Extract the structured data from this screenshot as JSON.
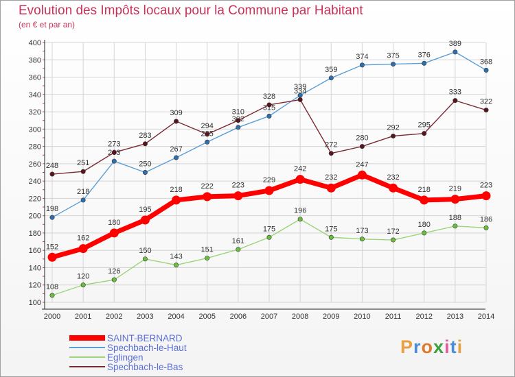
{
  "header": {
    "title": "Evolution des Impôts locaux pour la Commune par Habitant",
    "subtitle": "(en € et par an)"
  },
  "colors": {
    "title": "#c8325a",
    "axis": "#333333",
    "grid": "#d4d4d4",
    "legend_text": "#5b6fd6"
  },
  "logo": {
    "text": "Proxiti",
    "colors": [
      "#e8a040",
      "#4a8cd6",
      "#e07a2a",
      "#3ca03c",
      "#e85aa0",
      "#4a8cd6",
      "#e8a040"
    ]
  },
  "chart_data": {
    "type": "line",
    "title": "Evolution des Impôts locaux pour la Commune par Habitant",
    "subtitle": "(en € et par an)",
    "x": [
      "2000",
      "2001",
      "2002",
      "2003",
      "2004",
      "2005",
      "2006",
      "2007",
      "2008",
      "2009",
      "2010",
      "2011",
      "2012",
      "2013",
      "2014"
    ],
    "ylim": [
      100,
      400
    ],
    "yticks": [
      100,
      120,
      140,
      160,
      180,
      200,
      220,
      240,
      260,
      280,
      300,
      320,
      340,
      360,
      380,
      400
    ],
    "grid": true,
    "legend": "bottom-left",
    "series": [
      {
        "name": "Spechbach-le-Haut",
        "color": "#5a9ed6",
        "marker": "#2f6fb0",
        "width": 1.4,
        "values": [
          198,
          218,
          263,
          250,
          267,
          285,
          302,
          315,
          339,
          359,
          374,
          375,
          376,
          389,
          368
        ]
      },
      {
        "name": "Spechbach-le-Bas",
        "color": "#7a2a32",
        "marker": "#5a141c",
        "width": 1.4,
        "values": [
          248,
          251,
          273,
          283,
          309,
          294,
          310,
          328,
          334,
          272,
          280,
          292,
          295,
          333,
          322
        ]
      },
      {
        "name": "Eglingen",
        "color": "#9bd47a",
        "marker": "#6cbf3c",
        "width": 1.4,
        "values": [
          108,
          120,
          126,
          150,
          143,
          151,
          161,
          175,
          196,
          175,
          173,
          172,
          180,
          188,
          186
        ]
      },
      {
        "name": "SAINT-BERNARD",
        "color": "#ff0000",
        "marker": "#ff0000",
        "width": 7,
        "values": [
          152,
          162,
          180,
          195,
          218,
          222,
          223,
          229,
          242,
          232,
          247,
          232,
          218,
          219,
          223
        ]
      }
    ],
    "legend_order": [
      "SAINT-BERNARD",
      "Spechbach-le-Haut",
      "Eglingen",
      "Spechbach-le-Bas"
    ]
  }
}
